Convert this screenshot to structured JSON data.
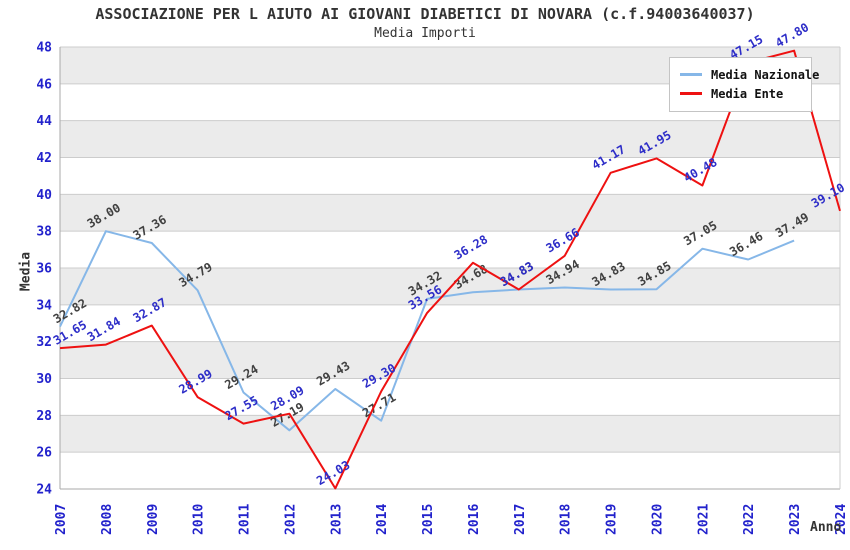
{
  "chart_data": {
    "type": "line",
    "title": "ASSOCIAZIONE PER L AIUTO AI GIOVANI DIABETICI DI NOVARA (c.f.94003640037)",
    "subtitle": "Media Importi",
    "xlabel": "Anno",
    "ylabel": "Media",
    "ylim": [
      24,
      48
    ],
    "ytick_step": 2,
    "grid": true,
    "legend_position": "top-right",
    "categories": [
      "2007",
      "2008",
      "2009",
      "2010",
      "2011",
      "2012",
      "2013",
      "2014",
      "2015",
      "2016",
      "2017",
      "2018",
      "2019",
      "2020",
      "2021",
      "2022",
      "2023",
      "2024"
    ],
    "series": [
      {
        "name": "Media Nazionale",
        "color": "#86b7e8",
        "label_color": "#404040",
        "values": [
          32.82,
          38.0,
          37.36,
          34.79,
          29.24,
          27.19,
          29.43,
          27.71,
          34.32,
          34.68,
          34.83,
          34.94,
          34.83,
          34.85,
          37.05,
          36.46,
          37.49,
          null
        ]
      },
      {
        "name": "Media Ente",
        "color": "#ee1111",
        "label_color": "#2d2dc8",
        "values": [
          31.65,
          31.84,
          32.87,
          28.99,
          27.55,
          28.09,
          24.03,
          29.3,
          33.56,
          36.28,
          34.83,
          36.66,
          41.17,
          41.95,
          40.48,
          47.15,
          47.8,
          39.1
        ]
      }
    ],
    "colors": {
      "band": "#ebebeb",
      "gridline": "#cccccc",
      "axis": "#aaaaaa",
      "tick_label": "#2222cc",
      "title": "#333333"
    }
  }
}
